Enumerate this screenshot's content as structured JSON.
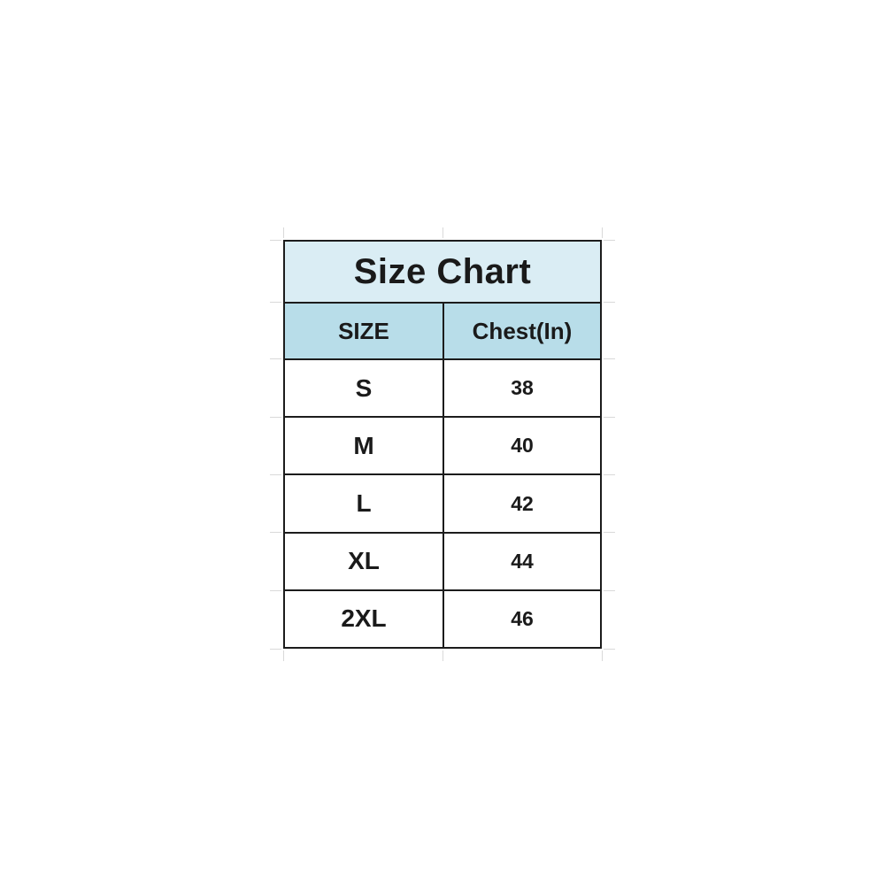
{
  "chart_data": {
    "type": "table",
    "title": "Size Chart",
    "columns": [
      "SIZE",
      "Chest(In)"
    ],
    "rows": [
      [
        "S",
        "38"
      ],
      [
        "M",
        "40"
      ],
      [
        "L",
        "42"
      ],
      [
        "XL",
        "44"
      ],
      [
        "2XL",
        "46"
      ]
    ]
  },
  "colors": {
    "title_bg": "#daedf4",
    "header_bg": "#b8dde9",
    "border": "#1c1c1c",
    "text": "#1a1a1a",
    "gridline": "#d9d9d9",
    "row_bg": "#ffffff",
    "page_bg": "#ffffff"
  }
}
